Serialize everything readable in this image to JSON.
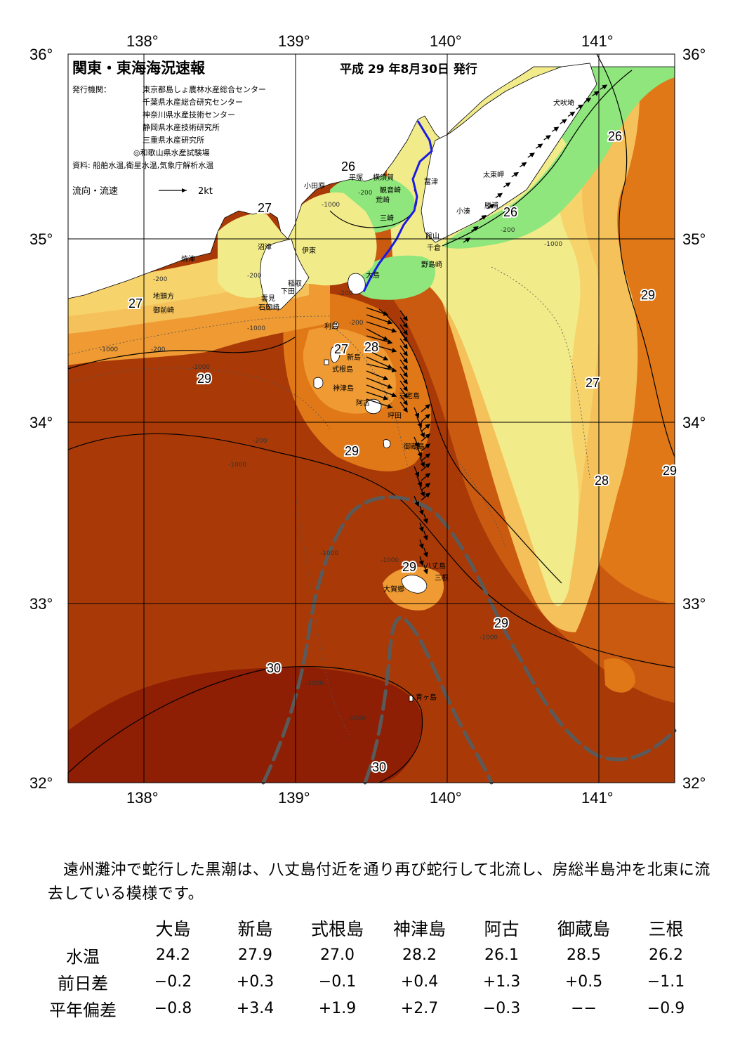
{
  "header": {
    "title": "関東・東海海況速報",
    "date": "平成 29 年8月30日 発行"
  },
  "publisher": {
    "label": "発行機関：",
    "orgs": [
      "東京都島しょ農林水産総合センター",
      "千葉県水産総合研究センター",
      "神奈川県水産技術センター",
      "静岡県水産技術研究所",
      "三重県水産研究所",
      "◎和歌山県水産試験場"
    ],
    "source": "資料: 船舶水温,衛星水温,気象庁解析水温"
  },
  "legend": {
    "label": "流向・流速",
    "scale": "2kt"
  },
  "axes": {
    "lon_ticks": [
      "138°",
      "139°",
      "140°",
      "141°"
    ],
    "lat_ticks": [
      "36°",
      "35°",
      "34°",
      "33°",
      "32°"
    ]
  },
  "isotherm_labels": {
    "l1": "26",
    "l2": "27",
    "l3": "27",
    "l4": "29",
    "l5": "27",
    "l6": "28",
    "l7": "29",
    "l8": "29",
    "l9": "30",
    "l10": "30",
    "l11": "29",
    "l12": "26",
    "l13": "26",
    "l14": "29",
    "l15": "27",
    "l16": "28",
    "l17": "29"
  },
  "places": {
    "p1": "犬吠埼",
    "p2": "太東岬",
    "p3": "勝浦",
    "p4": "小湊",
    "p5": "富津",
    "p6": "横須賀",
    "p7": "観音崎",
    "p8": "荒崎",
    "p9": "三崎",
    "p10": "平塚",
    "p11": "小田原",
    "p12": "館山",
    "p13": "千倉",
    "p14": "野島崎",
    "p15": "沼津",
    "p16": "焼津",
    "p17": "伊東",
    "p18": "稲取",
    "p19": "下田",
    "p20": "雲見",
    "p21": "石廊崎",
    "p22": "地頭方",
    "p23": "御前崎",
    "p24": "大島",
    "p25": "利島",
    "p26": "新島",
    "p27": "式根島",
    "p28": "神津島",
    "p29": "三宅島",
    "p30": "阿古",
    "p31": "坪田",
    "p32": "御蔵島",
    "p33": "八丈島",
    "p34": "三根",
    "p35": "大賀郷",
    "p36": "青ヶ島"
  },
  "depth_labels": [
    "-200",
    "-1000"
  ],
  "colors": {
    "t26": "#8ee67c",
    "t27": "#f2eb8a",
    "t27b": "#f7d36b",
    "t28": "#f5c15a",
    "t28b": "#ef9a33",
    "t29": "#e07818",
    "t29b": "#c95a10",
    "t30": "#a93a08",
    "t31": "#8e1e04",
    "land": "#ffffff",
    "kuroshio_axis": "#5a5a5a",
    "ferry_track": "#1a1ae6"
  },
  "description": "遠州灘沖で蛇行した黒潮は、八丈島付近を通り再び蛇行して北流し、房総半島沖を北東に流去している模様です。",
  "table": {
    "row_labels": [
      "水温",
      "前日差",
      "平年偏差"
    ],
    "stations": [
      {
        "name": "大島",
        "temp": "24.2",
        "diff": "−0.2",
        "anomaly": "−0.8"
      },
      {
        "name": "新島",
        "temp": "27.9",
        "diff": "+0.3",
        "anomaly": "+3.4"
      },
      {
        "name": "式根島",
        "temp": "27.0",
        "diff": "−0.1",
        "anomaly": "+1.9"
      },
      {
        "name": "神津島",
        "temp": "28.2",
        "diff": "+0.4",
        "anomaly": "+2.7"
      },
      {
        "name": "阿古",
        "temp": "26.1",
        "diff": "+1.3",
        "anomaly": "−0.3"
      },
      {
        "name": "御蔵島",
        "temp": "28.5",
        "diff": "+0.5",
        "anomaly": "−−"
      },
      {
        "name": "三根",
        "temp": "26.2",
        "diff": "−1.1",
        "anomaly": "−0.9"
      }
    ]
  }
}
